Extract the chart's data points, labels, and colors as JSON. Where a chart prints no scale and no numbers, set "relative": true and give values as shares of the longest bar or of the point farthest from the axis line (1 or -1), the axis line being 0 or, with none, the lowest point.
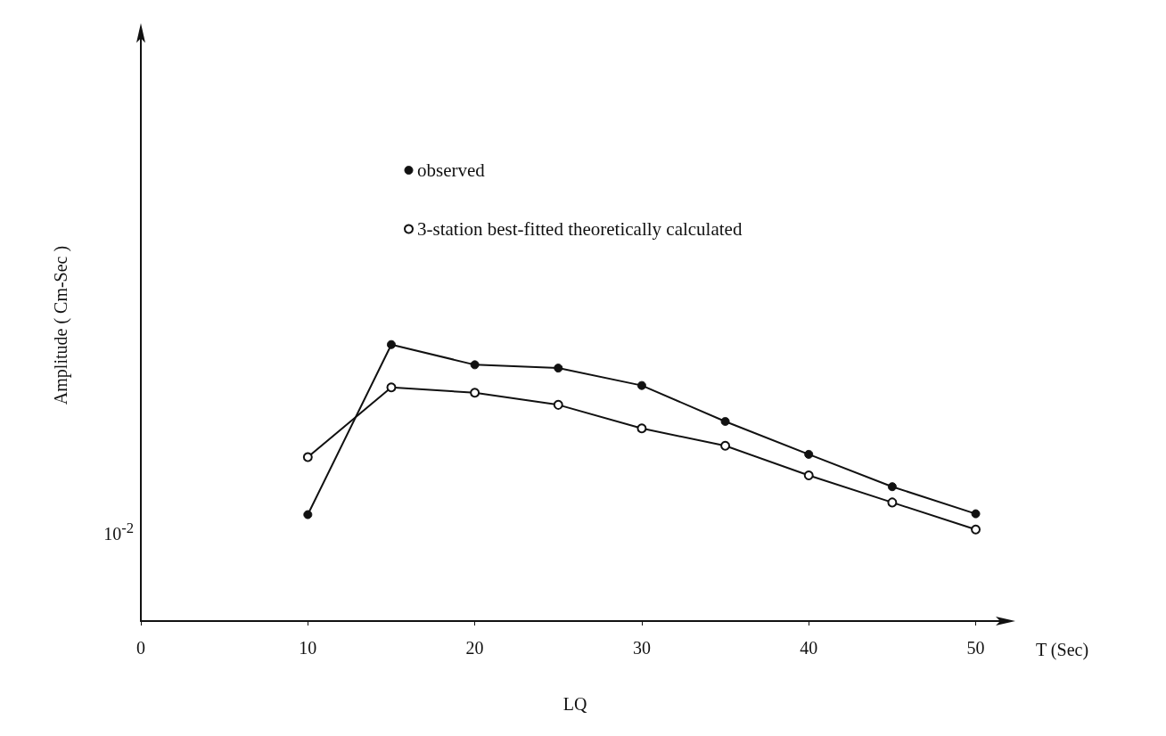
{
  "chart_data": {
    "type": "line",
    "relative": true,
    "xlabel": "T (Sec)",
    "ylabel": "Amplitude ( Cm-Sec )",
    "xlim": [
      0,
      52
    ],
    "xticks": [
      0,
      10,
      20,
      30,
      40,
      50
    ],
    "x": [
      10,
      15,
      20,
      25,
      30,
      35,
      40,
      45,
      50
    ],
    "legend": "top",
    "grid": false,
    "marker": "circle",
    "annotations": [
      "10$^{-2}$",
      "LQ"
    ],
    "series": [
      {
        "name": "observed",
        "color": "#111111",
        "values": [
          0.385,
          1,
          0.927,
          0.915,
          0.852,
          0.722,
          0.603,
          0.486,
          0.388
        ]
      },
      {
        "name": "3-station best-fitted theoretically calculated",
        "color": "#111111",
        "values": [
          0.593,
          0.845,
          0.826,
          0.782,
          0.697,
          0.634,
          0.527,
          0.429,
          0.331
        ]
      }
    ]
  }
}
